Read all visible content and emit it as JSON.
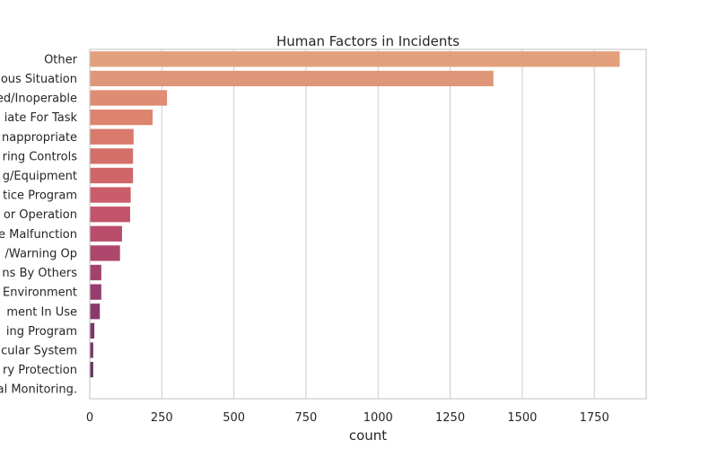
{
  "chart_data": {
    "type": "bar",
    "orientation": "horizontal",
    "title": "Human Factors in Incidents",
    "xlabel": "count",
    "ylabel": "",
    "xlim": [
      0,
      1930
    ],
    "x_ticks": [
      0,
      250,
      500,
      750,
      1000,
      1250,
      1500,
      1750
    ],
    "grid": "vertical",
    "palette": "flare",
    "categories": [
      "Other",
      "Dangerous Situation",
      "Equipment Defeated/Inoperable",
      "Equipment Inappropriate For Task",
      "Equipment Inappropriate",
      "Inadequate Engineering Controls",
      "Inadequate Maintenance/Tooling/Equipment",
      "Inadequate Work Practice Program",
      "Equipment Not Designed For Operation",
      "Equipment Malfunction",
      "Inadequate Guarding/Warning Op",
      "Unsafe Actions By Others",
      "Hazardous Work Environment",
      "Defective Equipment In Use",
      "Inadequate Housekeeping Program",
      "Lack Of Cardiovascular System",
      "Lack Of Respiratory Protection",
      "Lack Of Environmental Monitoring."
    ],
    "category_labels": [
      "Other",
      "ous Situation",
      "ed/Inoperable",
      "iate For Task",
      "nappropriate",
      "ring Controls",
      "g/Equipment",
      "tice Program",
      "or Operation",
      "e Malfunction",
      "/Warning Op",
      "ns By Others",
      "Environment",
      "ment In Use",
      "ing Program",
      "cular System",
      "ry Protection",
      "al Monitoring."
    ],
    "values": [
      1838,
      1400,
      268,
      218,
      152,
      150,
      150,
      142,
      140,
      112,
      105,
      40,
      40,
      35,
      16,
      12,
      12,
      0
    ],
    "colors": [
      "#e3a07c",
      "#e09678",
      "#df8c72",
      "#dd846e",
      "#d87a6c",
      "#d4706a",
      "#d0666a",
      "#cb5d6b",
      "#c3546c",
      "#b94d6c",
      "#ae476c",
      "#a3426c",
      "#963e6c",
      "#8a3a6a",
      "#7e376a",
      "#723568",
      "#663266",
      "#5b3064"
    ]
  }
}
